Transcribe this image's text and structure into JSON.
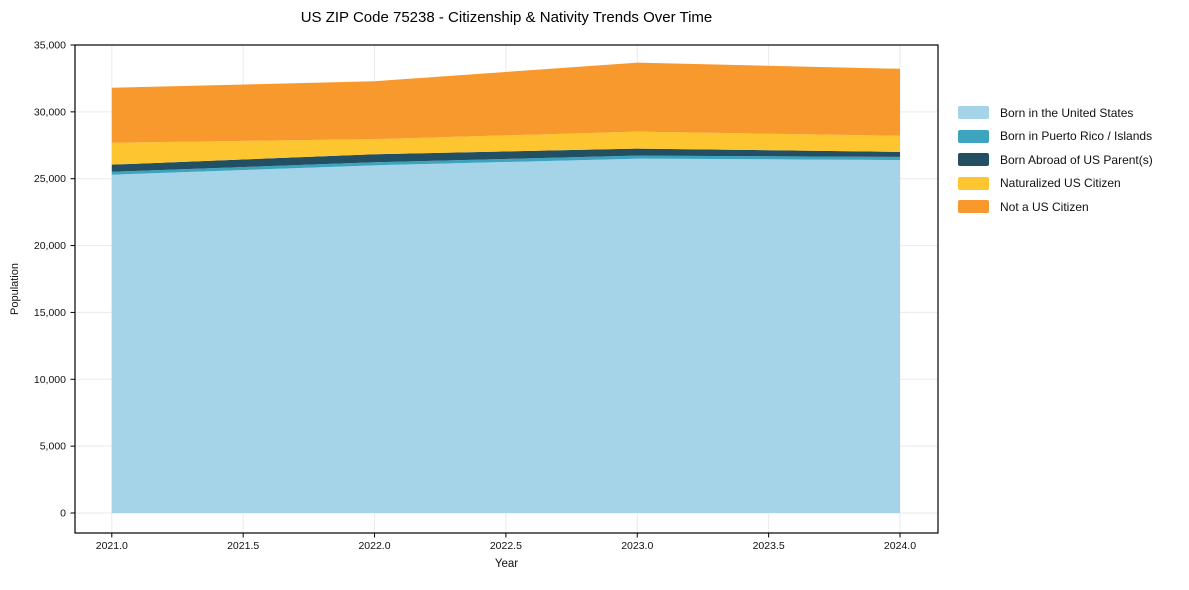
{
  "figure": {
    "title": "US ZIP Code 75238 - Citizenship & Nativity Trends Over Time",
    "xlabel": "Year",
    "ylabel": "Population"
  },
  "chart_data": {
    "type": "area",
    "stacked": true,
    "title": "US ZIP Code 75238 - Citizenship & Nativity Trends Over Time",
    "xlabel": "Year",
    "ylabel": "Population",
    "x": [
      2021,
      2022,
      2023,
      2024
    ],
    "series": [
      {
        "name": "Born in the United States",
        "color": "#a5d3e7",
        "values": [
          25300,
          26000,
          26500,
          26400
        ]
      },
      {
        "name": "Born in Puerto Rico / Islands",
        "color": "#3da4c0",
        "values": [
          220,
          230,
          230,
          230
        ]
      },
      {
        "name": "Born Abroad of US Parent(s)",
        "color": "#234f63",
        "values": [
          530,
          600,
          520,
          380
        ]
      },
      {
        "name": "Naturalized US Citizen",
        "color": "#fdc52f",
        "values": [
          1640,
          1130,
          1270,
          1200
        ]
      },
      {
        "name": "Not a US Citizen",
        "color": "#f8992e",
        "values": [
          4110,
          4330,
          5160,
          5010
        ]
      }
    ],
    "totals_by_year": [
      31800,
      32290,
      33680,
      33220
    ],
    "xlim": [
      2020.86,
      2024.14
    ],
    "ylim": [
      0,
      35000
    ],
    "xticks": {
      "values": [
        2021.0,
        2021.5,
        2022.0,
        2022.5,
        2023.0,
        2023.5,
        2024.0
      ],
      "labels": [
        "2021.0",
        "2021.5",
        "2022.0",
        "2022.5",
        "2023.0",
        "2023.5",
        "2024.0"
      ]
    },
    "yticks": {
      "values": [
        0,
        5000,
        10000,
        15000,
        20000,
        25000,
        30000,
        35000
      ],
      "labels": [
        "0",
        "5,000",
        "10,000",
        "15,000",
        "20,000",
        "25,000",
        "30,000",
        "35,000"
      ]
    },
    "grid": true,
    "legend_position": "right"
  },
  "colors": {
    "background": "#ffffff",
    "grid": "#eaeaea",
    "spine": "#000000",
    "tick_text": "#111111"
  }
}
